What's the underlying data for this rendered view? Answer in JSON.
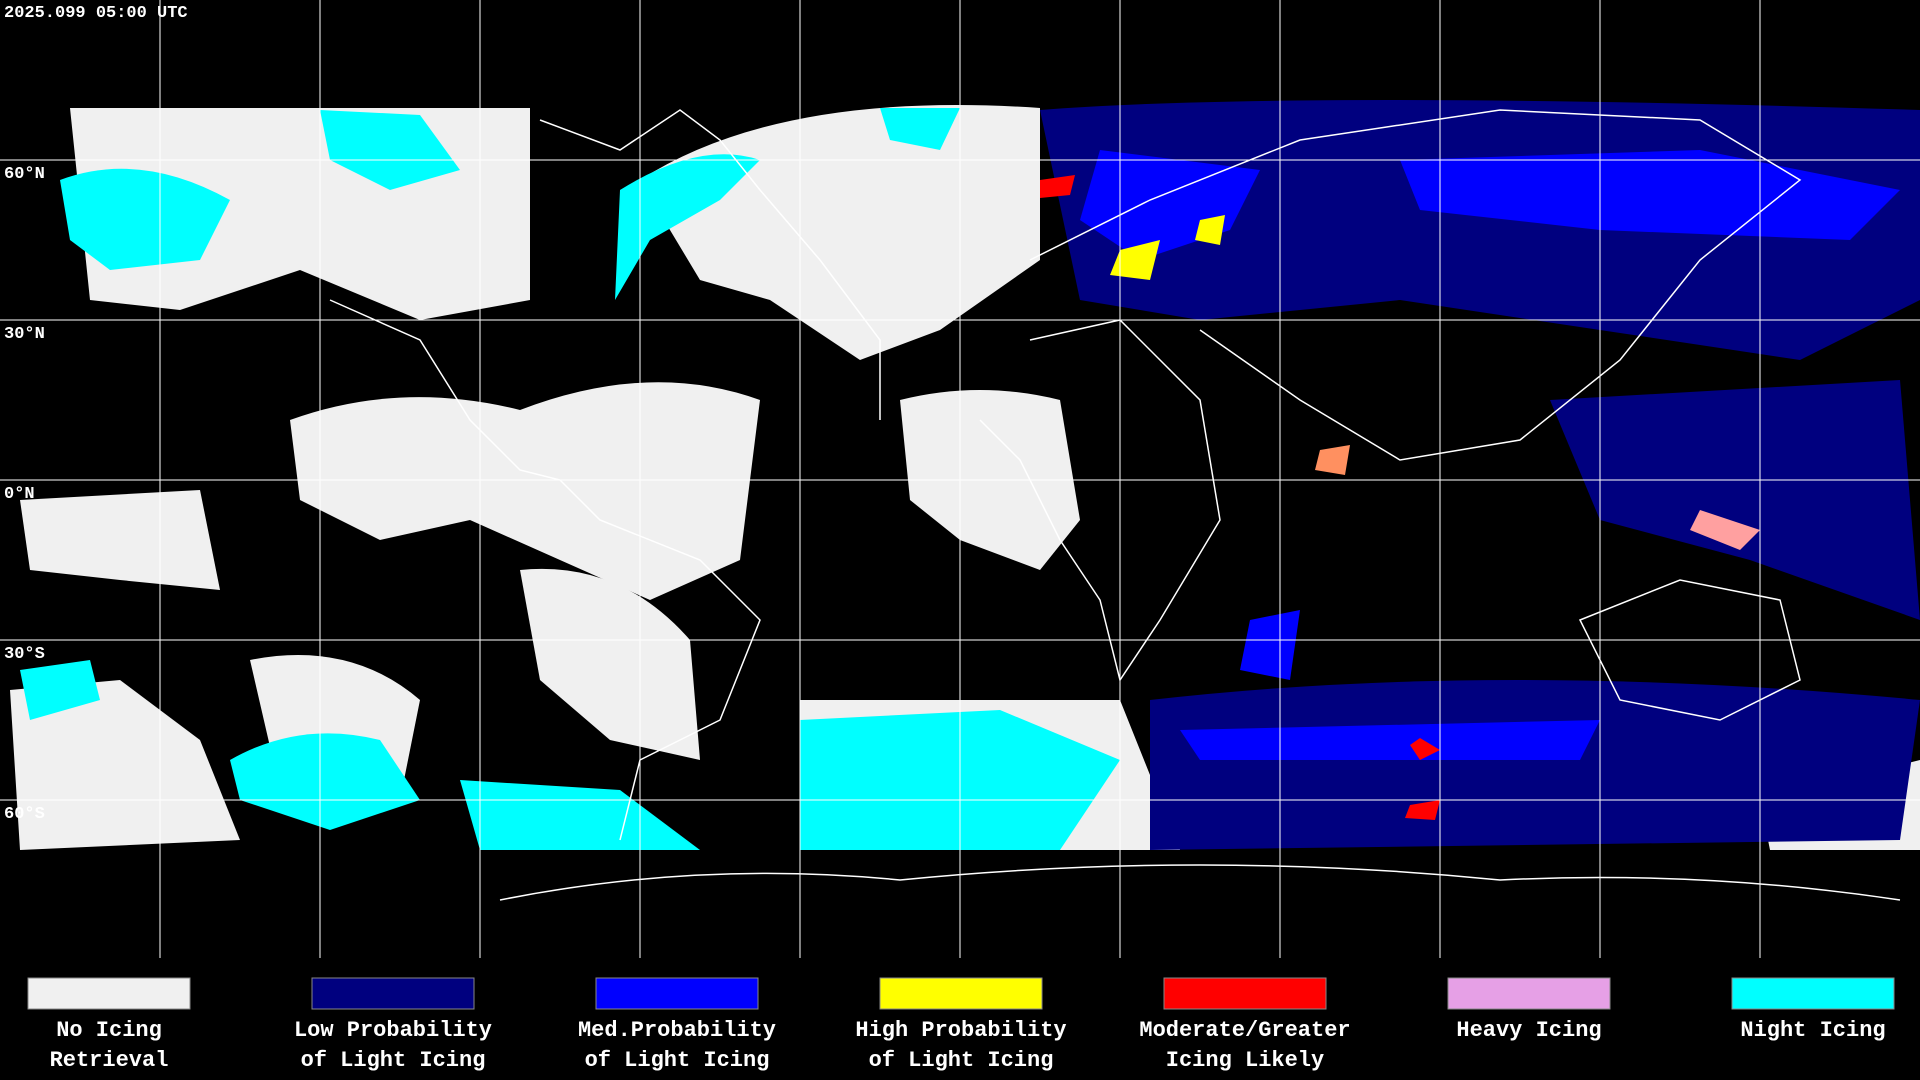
{
  "header": {
    "timestamp": "2025.099 05:00 UTC"
  },
  "map": {
    "latitude_labels": [
      "60°N",
      "30°N",
      "0°N",
      "30°S",
      "60°S"
    ]
  },
  "legend": {
    "items": [
      {
        "lines": [
          "No Icing",
          "Retrieval"
        ],
        "color": "#f0f0f0"
      },
      {
        "lines": [
          "Low Probability",
          "of Light Icing"
        ],
        "color": "#00007f"
      },
      {
        "lines": [
          "Med.Probability",
          "of Light Icing"
        ],
        "color": "#0000ff"
      },
      {
        "lines": [
          "High Probability",
          "of Light Icing"
        ],
        "color": "#ffff00"
      },
      {
        "lines": [
          "Moderate/Greater",
          "Icing Likely"
        ],
        "color": "#ff0000"
      },
      {
        "lines": [
          "Heavy Icing"
        ],
        "color": "#e6a0e6"
      },
      {
        "lines": [
          "Night Icing"
        ],
        "color": "#00ffff"
      }
    ]
  }
}
